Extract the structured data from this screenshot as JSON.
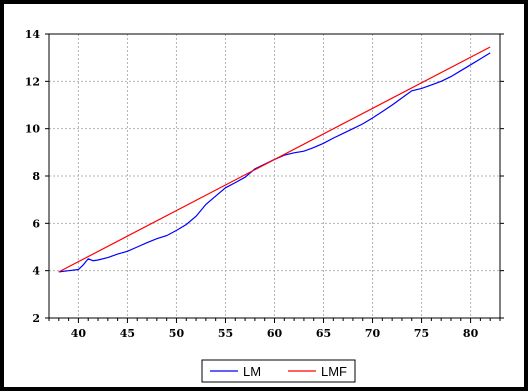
{
  "chart_data": {
    "type": "line",
    "title": "",
    "xlabel": "",
    "ylabel": "",
    "xlim": [
      37,
      83
    ],
    "ylim": [
      2,
      14
    ],
    "x_ticks": [
      40,
      45,
      50,
      55,
      60,
      65,
      70,
      75,
      80
    ],
    "y_ticks": [
      2,
      4,
      6,
      8,
      10,
      12,
      14
    ],
    "grid": true,
    "legend_position": "bottom",
    "series": [
      {
        "name": "LM",
        "color": "#0000ff",
        "x": [
          38,
          39,
          40,
          40.5,
          41,
          41.5,
          42,
          43,
          44,
          45,
          46,
          47,
          48,
          49,
          50,
          51,
          52,
          53,
          54,
          55,
          56,
          57,
          58,
          59,
          60,
          61,
          62,
          63,
          64,
          65,
          66,
          67,
          68,
          69,
          70,
          71,
          72,
          73,
          74,
          75,
          76,
          77,
          78,
          79,
          80,
          81,
          82
        ],
        "y": [
          3.95,
          4.0,
          4.05,
          4.25,
          4.5,
          4.42,
          4.45,
          4.55,
          4.7,
          4.82,
          5.0,
          5.18,
          5.35,
          5.48,
          5.7,
          5.95,
          6.3,
          6.8,
          7.15,
          7.5,
          7.72,
          7.95,
          8.3,
          8.5,
          8.7,
          8.88,
          8.98,
          9.05,
          9.2,
          9.38,
          9.6,
          9.8,
          10.0,
          10.2,
          10.45,
          10.72,
          11.0,
          11.3,
          11.6,
          11.7,
          11.85,
          12.0,
          12.2,
          12.45,
          12.7,
          12.95,
          13.2
        ]
      },
      {
        "name": "LMF",
        "color": "#ff0000",
        "x": [
          38,
          82
        ],
        "y": [
          3.95,
          13.45
        ]
      }
    ]
  }
}
